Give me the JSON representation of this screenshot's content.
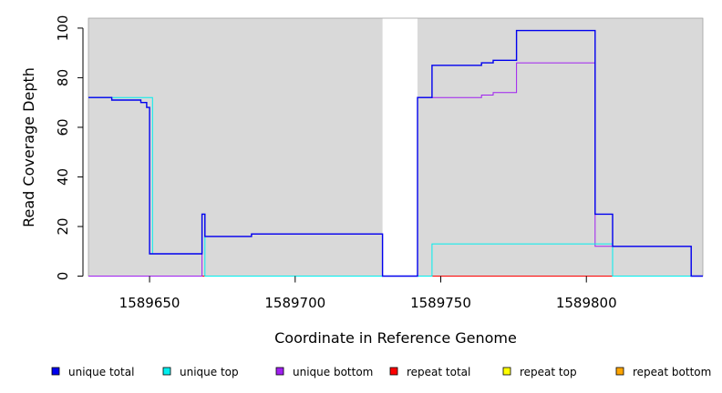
{
  "chart_data": {
    "type": "line",
    "xlabel": "Coordinate in Reference Genome",
    "ylabel": "Read Coverage Depth",
    "xlim": [
      1589629,
      1589840
    ],
    "ylim": [
      0,
      104
    ],
    "x_ticks": [
      1589650,
      1589700,
      1589750,
      1589800
    ],
    "y_ticks": [
      0,
      20,
      40,
      60,
      80,
      100
    ],
    "background": "#d9d9d9",
    "unshaded_region": [
      1589730,
      1589742
    ],
    "legend_position": "bottom",
    "series": [
      {
        "name": "unique total",
        "color": "#0000ee",
        "x": [
          1589629,
          1589637,
          1589637,
          1589647,
          1589647,
          1589649,
          1589649,
          1589650,
          1589650,
          1589651,
          1589651,
          1589668,
          1589668,
          1589669,
          1589669,
          1589685,
          1589685,
          1589730,
          1589730,
          1589742,
          1589742,
          1589747,
          1589747,
          1589764,
          1589764,
          1589768,
          1589768,
          1589776,
          1589776,
          1589803,
          1589803,
          1589809,
          1589809,
          1589836,
          1589836,
          1589840
        ],
        "y": [
          72,
          72,
          71,
          71,
          70,
          70,
          68,
          68,
          9,
          9,
          9,
          9,
          25,
          25,
          16,
          16,
          17,
          17,
          0,
          0,
          72,
          72,
          85,
          85,
          86,
          86,
          87,
          87,
          99,
          99,
          25,
          25,
          12,
          12,
          0,
          0
        ]
      },
      {
        "name": "unique top",
        "color": "#00eeee",
        "x": [
          1589629,
          1589651,
          1589651,
          1589668,
          1589668,
          1589669,
          1589669,
          1589747,
          1589747,
          1589809,
          1589809,
          1589840
        ],
        "y": [
          72,
          72,
          9,
          9,
          25,
          25,
          0,
          0,
          13,
          13,
          0,
          0
        ]
      },
      {
        "name": "unique bottom",
        "color": "#a020f0",
        "x": [
          1589629,
          1589668,
          1589668,
          1589669,
          1589669,
          1589685,
          1589685,
          1589730,
          1589730,
          1589742,
          1589742,
          1589764,
          1589764,
          1589768,
          1589768,
          1589776,
          1589776,
          1589803,
          1589803,
          1589809,
          1589809,
          1589836,
          1589836,
          1589840
        ],
        "y": [
          0,
          0,
          25,
          25,
          16,
          16,
          17,
          17,
          0,
          0,
          72,
          72,
          73,
          73,
          74,
          74,
          86,
          86,
          12,
          12,
          12,
          12,
          0,
          0
        ]
      },
      {
        "name": "repeat total",
        "color": "#ff0000",
        "x": [
          1589629,
          1589840
        ],
        "y": [
          0,
          0
        ]
      },
      {
        "name": "repeat top",
        "color": "#ffff00",
        "x": [
          1589629,
          1589840
        ],
        "y": [
          0,
          0
        ]
      },
      {
        "name": "repeat bottom",
        "color": "#ffa500",
        "x": [
          1589629,
          1589840
        ],
        "y": [
          0,
          0
        ]
      }
    ]
  }
}
